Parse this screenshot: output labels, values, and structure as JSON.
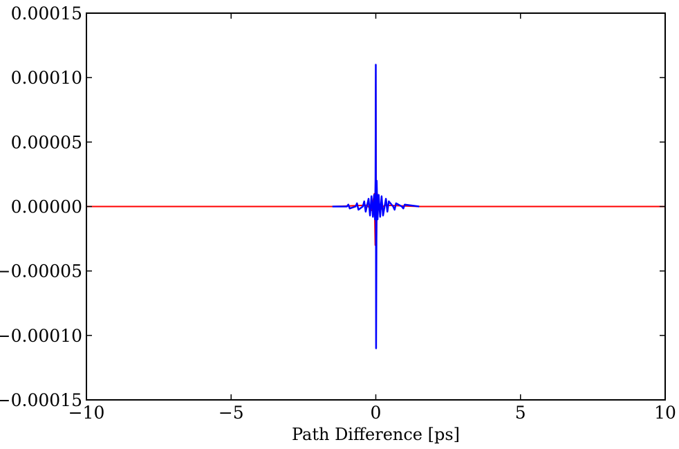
{
  "chart_data": {
    "type": "line",
    "title": "",
    "xlabel": "Path Difference [ps]",
    "ylabel": "",
    "xlim": [
      -10,
      10
    ],
    "ylim": [
      -0.00015,
      0.00015
    ],
    "xticks": [
      -10,
      -5,
      0,
      5,
      10
    ],
    "xtick_labels": [
      "−10",
      "−5",
      "0",
      "5",
      "10"
    ],
    "yticks": [
      -0.00015,
      -0.0001,
      -5e-05,
      0,
      5e-05,
      0.0001,
      0.00015
    ],
    "ytick_labels": [
      "−0.00015",
      "−0.00010",
      "−0.00005",
      "0.00000",
      "0.00005",
      "0.00010",
      "0.00015"
    ],
    "grid": false,
    "legend": "none",
    "series": [
      {
        "color": "#ff0000",
        "x": [
          -10,
          -1.5,
          -0.3,
          -0.15,
          -0.05,
          -0.02,
          0,
          0.02,
          0.05,
          0.15,
          0.3,
          1.5,
          10
        ],
        "y": [
          0,
          0,
          1e-06,
          -3e-06,
          1e-05,
          -3e-05,
          0.00011,
          -3e-05,
          1e-05,
          -3e-06,
          1e-06,
          0,
          0
        ]
      },
      {
        "color": "#0000ff",
        "x": [
          -1.5,
          -1.0,
          -0.95,
          -0.9,
          -0.7,
          -0.65,
          -0.6,
          -0.45,
          -0.4,
          -0.35,
          -0.25,
          -0.2,
          -0.15,
          -0.1,
          -0.06,
          -0.03,
          -0.01,
          0,
          0.01,
          0.03,
          0.06,
          0.1,
          0.15,
          0.2,
          0.25,
          0.35,
          0.4,
          0.45,
          0.6,
          0.65,
          0.7,
          0.9,
          0.95,
          1.0,
          1.5
        ],
        "y": [
          0,
          0,
          1.5e-06,
          -1.5e-06,
          0,
          2.5e-06,
          -2.5e-06,
          0,
          4e-06,
          -4e-06,
          6e-06,
          -7e-06,
          8e-06,
          -8e-06,
          9e-06,
          -1e-05,
          2e-05,
          0.00011,
          -0.00011,
          2e-05,
          -1e-05,
          9e-06,
          -8e-06,
          8e-06,
          -7e-06,
          6e-06,
          -4e-06,
          4e-06,
          0,
          -2.5e-06,
          2.5e-06,
          0,
          -1.5e-06,
          1.5e-06,
          0
        ]
      }
    ]
  }
}
